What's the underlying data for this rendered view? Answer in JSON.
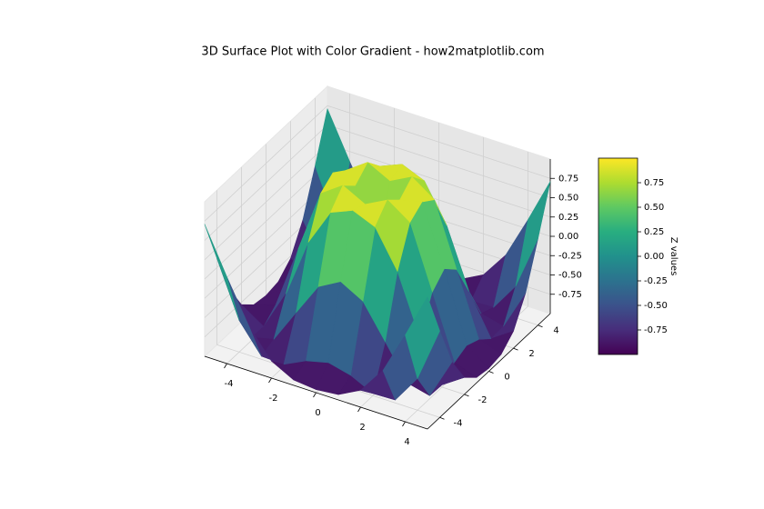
{
  "chart_data": {
    "type": "surface3d",
    "title": "3D Surface Plot with Color Gradient - how2matplotlib.com",
    "x": [
      -5,
      -4,
      -3,
      -2,
      -1,
      0,
      1,
      2,
      3,
      4,
      5
    ],
    "y": [
      -5,
      -4,
      -3,
      -2,
      -1,
      0,
      1,
      2,
      3,
      4,
      5
    ],
    "z": [
      [
        0.71,
        0.12,
        -0.43,
        -0.78,
        -0.93,
        -0.96,
        -0.93,
        -0.78,
        -0.43,
        0.12,
        0.71
      ],
      [
        0.12,
        -0.59,
        -0.96,
        -0.97,
        -0.83,
        -0.76,
        -0.83,
        -0.97,
        -0.96,
        -0.59,
        0.12
      ],
      [
        -0.43,
        -0.96,
        -0.89,
        -0.45,
        -0.02,
        0.14,
        -0.02,
        -0.45,
        -0.89,
        -0.96,
        -0.43
      ],
      [
        -0.78,
        -0.97,
        -0.45,
        0.31,
        0.79,
        0.91,
        0.79,
        0.31,
        -0.45,
        -0.97,
        -0.78
      ],
      [
        -0.93,
        -0.83,
        -0.02,
        0.79,
        0.99,
        0.84,
        0.99,
        0.79,
        -0.02,
        -0.83,
        -0.93
      ],
      [
        -0.96,
        -0.76,
        0.14,
        0.91,
        0.84,
        0,
        0.84,
        0.91,
        0.14,
        -0.76,
        -0.96
      ],
      [
        -0.93,
        -0.83,
        -0.02,
        0.79,
        0.99,
        0.84,
        0.99,
        0.79,
        -0.02,
        -0.83,
        -0.93
      ],
      [
        -0.78,
        -0.97,
        -0.45,
        0.31,
        0.79,
        0.91,
        0.79,
        0.31,
        -0.45,
        -0.97,
        -0.78
      ],
      [
        -0.43,
        -0.96,
        -0.89,
        -0.45,
        -0.02,
        0.14,
        -0.02,
        -0.45,
        -0.89,
        -0.96,
        -0.43
      ],
      [
        0.12,
        -0.59,
        -0.96,
        -0.97,
        -0.83,
        -0.76,
        -0.83,
        -0.97,
        -0.96,
        -0.59,
        0.12
      ],
      [
        0.71,
        0.12,
        -0.43,
        -0.78,
        -0.93,
        -0.96,
        -0.93,
        -0.78,
        -0.43,
        0.12,
        0.71
      ]
    ],
    "xlim": [
      -5,
      5
    ],
    "ylim": [
      -5,
      5
    ],
    "zlim": [
      -1,
      1
    ],
    "xticks": [
      -4,
      -2,
      0,
      2,
      4
    ],
    "yticks": [
      -4,
      -2,
      0,
      2,
      4
    ],
    "zticks": [
      0.75,
      {
        "value": 0.5,
        "label": "0.50"
      },
      0.25,
      {
        "value": 0,
        "label": "0.00"
      },
      -0.25,
      {
        "value": -0.5,
        "label": "-0.50"
      },
      -0.75
    ],
    "colormap": "viridis",
    "clim": [
      -1,
      1
    ],
    "colorbar_label": "Z values",
    "colorbar_ticks": [
      0.75,
      {
        "value": 0.5,
        "label": "0.50"
      },
      0.25,
      {
        "value": 0,
        "label": "0.00"
      },
      -0.25,
      {
        "value": -0.5,
        "label": "-0.50"
      },
      -0.75
    ],
    "grid": true
  }
}
